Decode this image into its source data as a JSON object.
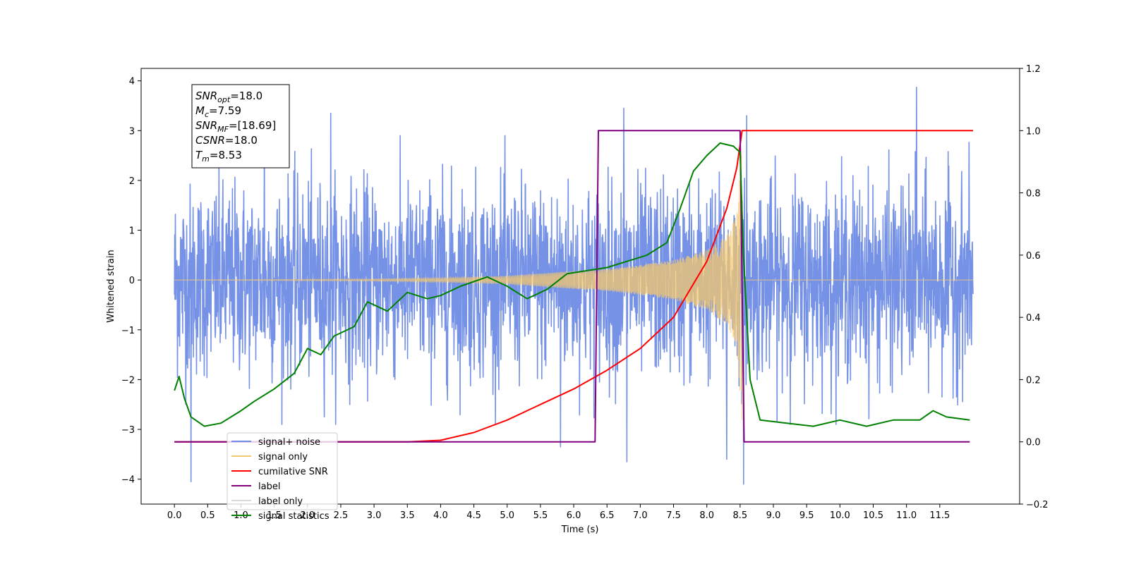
{
  "chart_data": {
    "type": "line",
    "xlabel": "Time (s)",
    "ylabel": "Whitened strain",
    "xlim": [
      -0.5,
      12.7
    ],
    "ylim_left": [
      -4.5,
      4.25
    ],
    "ylim_right": [
      -0.2,
      1.2
    ],
    "x_ticks": [
      0.0,
      0.5,
      1.0,
      1.5,
      2.0,
      2.5,
      3.0,
      3.5,
      4.0,
      4.5,
      5.0,
      5.5,
      6.0,
      6.5,
      7.0,
      7.5,
      8.0,
      8.5,
      9.0,
      9.5,
      10.0,
      10.5,
      11.0,
      11.5
    ],
    "x_tick_labels": [
      "0.0",
      "0.5",
      "1.0",
      "1.5",
      "2.0",
      "2.5",
      "3.0",
      "3.5",
      "4.0",
      "4.5",
      "5.0",
      "5.5",
      "6.0",
      "6.5",
      "7.0",
      "7.5",
      "8.0",
      "8.5",
      "9.0",
      "9.5",
      "10.0",
      "10.5",
      "11.0",
      "11.5"
    ],
    "y_left_ticks": [
      -4,
      -3,
      -2,
      -1,
      0,
      1,
      2,
      3,
      4
    ],
    "y_left_tick_labels": [
      "−4",
      "−3",
      "−2",
      "−1",
      "0",
      "1",
      "2",
      "3",
      "4"
    ],
    "y_right_ticks": [
      -0.2,
      0.0,
      0.2,
      0.4,
      0.6,
      0.8,
      1.0,
      1.2
    ],
    "y_right_tick_labels": [
      "−0.2",
      "0.0",
      "0.2",
      "0.4",
      "0.6",
      "0.8",
      "1.0",
      "1.2"
    ],
    "grid": false,
    "legend_position": "lower-left",
    "stats_box": [
      {
        "base": "SNR",
        "sub": "opt",
        "value": "=18.0"
      },
      {
        "base": "M",
        "sub": "c",
        "value": "=7.59"
      },
      {
        "base": "SNR",
        "sub": "MF",
        "value": "=[18.69]"
      },
      {
        "base": "CSNR",
        "sub": "",
        "value": "=18.0"
      },
      {
        "base": "T",
        "sub": "m",
        "value": "=8.53"
      }
    ],
    "series": [
      {
        "name": "signal+ noise",
        "axis": "left",
        "color": "#6f8ce6",
        "kind": "noise",
        "x_range": [
          0.0,
          12.0
        ],
        "std": 0.95,
        "outliers": [
          {
            "x": 0.25,
            "y": -4.05
          },
          {
            "x": 1.35,
            "y": 3.35
          },
          {
            "x": 2.35,
            "y": 3.35
          },
          {
            "x": 5.8,
            "y": -3.35
          },
          {
            "x": 6.75,
            "y": 3.45
          },
          {
            "x": 6.8,
            "y": -3.65
          },
          {
            "x": 8.3,
            "y": -3.6
          },
          {
            "x": 8.55,
            "y": -4.1
          },
          {
            "x": 8.6,
            "y": 3.3
          },
          {
            "x": 11.15,
            "y": 3.87
          }
        ]
      },
      {
        "name": "signal only",
        "axis": "left",
        "color": "#f5c86e",
        "kind": "chirp",
        "x_range": [
          0.0,
          12.0
        ],
        "merger_time": 8.53,
        "envelope": [
          {
            "x": 0.0,
            "amp": 0.0
          },
          {
            "x": 3.0,
            "amp": 0.02
          },
          {
            "x": 4.0,
            "amp": 0.04
          },
          {
            "x": 5.0,
            "amp": 0.08
          },
          {
            "x": 6.0,
            "amp": 0.18
          },
          {
            "x": 6.5,
            "amp": 0.22
          },
          {
            "x": 7.0,
            "amp": 0.3
          },
          {
            "x": 7.5,
            "amp": 0.4
          },
          {
            "x": 8.0,
            "amp": 0.6
          },
          {
            "x": 8.3,
            "amp": 0.9
          },
          {
            "x": 8.45,
            "amp": 1.3
          },
          {
            "x": 8.53,
            "amp": 2.9
          }
        ]
      },
      {
        "name": "cumilative SNR",
        "axis": "right",
        "color": "#ff0000",
        "points": [
          {
            "x": 0.0,
            "y": 0.0
          },
          {
            "x": 3.5,
            "y": 0.0
          },
          {
            "x": 4.0,
            "y": 0.005
          },
          {
            "x": 4.5,
            "y": 0.03
          },
          {
            "x": 5.0,
            "y": 0.07
          },
          {
            "x": 5.5,
            "y": 0.12
          },
          {
            "x": 6.0,
            "y": 0.17
          },
          {
            "x": 6.5,
            "y": 0.23
          },
          {
            "x": 7.0,
            "y": 0.3
          },
          {
            "x": 7.5,
            "y": 0.4
          },
          {
            "x": 8.0,
            "y": 0.58
          },
          {
            "x": 8.3,
            "y": 0.75
          },
          {
            "x": 8.45,
            "y": 0.88
          },
          {
            "x": 8.53,
            "y": 1.0
          },
          {
            "x": 12.0,
            "y": 1.0
          }
        ]
      },
      {
        "name": "label",
        "axis": "right",
        "color": "#800080",
        "points": [
          {
            "x": 0.0,
            "y": 0.0
          },
          {
            "x": 6.32,
            "y": 0.0
          },
          {
            "x": 6.37,
            "y": 1.0
          },
          {
            "x": 8.5,
            "y": 1.0
          },
          {
            "x": 8.56,
            "y": 0.0
          },
          {
            "x": 11.95,
            "y": 0.0
          }
        ]
      },
      {
        "name": "label only",
        "axis": "right",
        "color": "#d9d9d9",
        "points": []
      },
      {
        "name": "signal statistics",
        "axis": "right",
        "color": "#008000",
        "points": [
          {
            "x": 0.0,
            "y": 0.165
          },
          {
            "x": 0.07,
            "y": 0.21
          },
          {
            "x": 0.15,
            "y": 0.14
          },
          {
            "x": 0.25,
            "y": 0.08
          },
          {
            "x": 0.45,
            "y": 0.05
          },
          {
            "x": 0.7,
            "y": 0.06
          },
          {
            "x": 1.0,
            "y": 0.1
          },
          {
            "x": 1.2,
            "y": 0.13
          },
          {
            "x": 1.5,
            "y": 0.17
          },
          {
            "x": 1.8,
            "y": 0.22
          },
          {
            "x": 2.0,
            "y": 0.3
          },
          {
            "x": 2.2,
            "y": 0.28
          },
          {
            "x": 2.4,
            "y": 0.34
          },
          {
            "x": 2.7,
            "y": 0.37
          },
          {
            "x": 2.9,
            "y": 0.45
          },
          {
            "x": 3.2,
            "y": 0.42
          },
          {
            "x": 3.5,
            "y": 0.48
          },
          {
            "x": 3.8,
            "y": 0.46
          },
          {
            "x": 4.0,
            "y": 0.47
          },
          {
            "x": 4.3,
            "y": 0.5
          },
          {
            "x": 4.7,
            "y": 0.53
          },
          {
            "x": 5.0,
            "y": 0.5
          },
          {
            "x": 5.3,
            "y": 0.46
          },
          {
            "x": 5.6,
            "y": 0.49
          },
          {
            "x": 5.9,
            "y": 0.54
          },
          {
            "x": 6.2,
            "y": 0.55
          },
          {
            "x": 6.5,
            "y": 0.56
          },
          {
            "x": 6.8,
            "y": 0.58
          },
          {
            "x": 7.1,
            "y": 0.6
          },
          {
            "x": 7.4,
            "y": 0.64
          },
          {
            "x": 7.6,
            "y": 0.75
          },
          {
            "x": 7.8,
            "y": 0.87
          },
          {
            "x": 8.0,
            "y": 0.92
          },
          {
            "x": 8.2,
            "y": 0.96
          },
          {
            "x": 8.4,
            "y": 0.95
          },
          {
            "x": 8.5,
            "y": 0.93
          },
          {
            "x": 8.55,
            "y": 0.6
          },
          {
            "x": 8.65,
            "y": 0.2
          },
          {
            "x": 8.8,
            "y": 0.07
          },
          {
            "x": 9.2,
            "y": 0.06
          },
          {
            "x": 9.6,
            "y": 0.05
          },
          {
            "x": 10.0,
            "y": 0.07
          },
          {
            "x": 10.4,
            "y": 0.05
          },
          {
            "x": 10.8,
            "y": 0.07
          },
          {
            "x": 11.2,
            "y": 0.07
          },
          {
            "x": 11.4,
            "y": 0.1
          },
          {
            "x": 11.6,
            "y": 0.08
          },
          {
            "x": 11.95,
            "y": 0.07
          }
        ]
      }
    ]
  }
}
